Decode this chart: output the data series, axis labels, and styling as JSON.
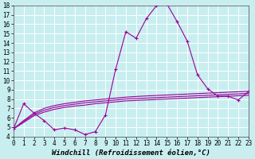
{
  "xlabel": "Windchill (Refroidissement éolien,°C)",
  "background_color": "#c8eef0",
  "grid_color": "#aadddd",
  "line_color": "#990099",
  "x_values": [
    0,
    1,
    2,
    3,
    4,
    5,
    6,
    7,
    8,
    9,
    10,
    11,
    12,
    13,
    14,
    15,
    16,
    17,
    18,
    19,
    20,
    21,
    22,
    23
  ],
  "line1": [
    4.8,
    7.5,
    6.5,
    5.7,
    4.7,
    4.9,
    4.7,
    4.2,
    4.5,
    6.3,
    11.2,
    15.2,
    14.5,
    16.6,
    18.0,
    18.2,
    16.3,
    14.2,
    10.6,
    9.1,
    8.3,
    8.3,
    7.9,
    8.8
  ],
  "flat_lines": [
    [
      4.8,
      5.5,
      6.2,
      6.6,
      6.9,
      7.1,
      7.25,
      7.35,
      7.5,
      7.6,
      7.7,
      7.8,
      7.85,
      7.9,
      7.95,
      8.0,
      8.05,
      8.1,
      8.15,
      8.2,
      8.25,
      8.3,
      8.35,
      8.4
    ],
    [
      4.8,
      5.6,
      6.35,
      6.8,
      7.1,
      7.3,
      7.45,
      7.6,
      7.7,
      7.8,
      7.9,
      8.0,
      8.05,
      8.1,
      8.15,
      8.2,
      8.25,
      8.3,
      8.35,
      8.4,
      8.45,
      8.5,
      8.55,
      8.6
    ],
    [
      4.8,
      5.7,
      6.5,
      7.0,
      7.3,
      7.5,
      7.65,
      7.8,
      7.9,
      8.0,
      8.1,
      8.2,
      8.27,
      8.33,
      8.38,
      8.43,
      8.48,
      8.53,
      8.58,
      8.63,
      8.68,
      8.73,
      8.78,
      8.83
    ]
  ],
  "ylim": [
    4,
    18
  ],
  "xlim": [
    0,
    23
  ],
  "yticks": [
    4,
    5,
    6,
    7,
    8,
    9,
    10,
    11,
    12,
    13,
    14,
    15,
    16,
    17,
    18
  ],
  "xticks": [
    0,
    1,
    2,
    3,
    4,
    5,
    6,
    7,
    8,
    9,
    10,
    11,
    12,
    13,
    14,
    15,
    16,
    17,
    18,
    19,
    20,
    21,
    22,
    23
  ],
  "tick_fontsize": 5.5,
  "xlabel_fontsize": 6.5
}
